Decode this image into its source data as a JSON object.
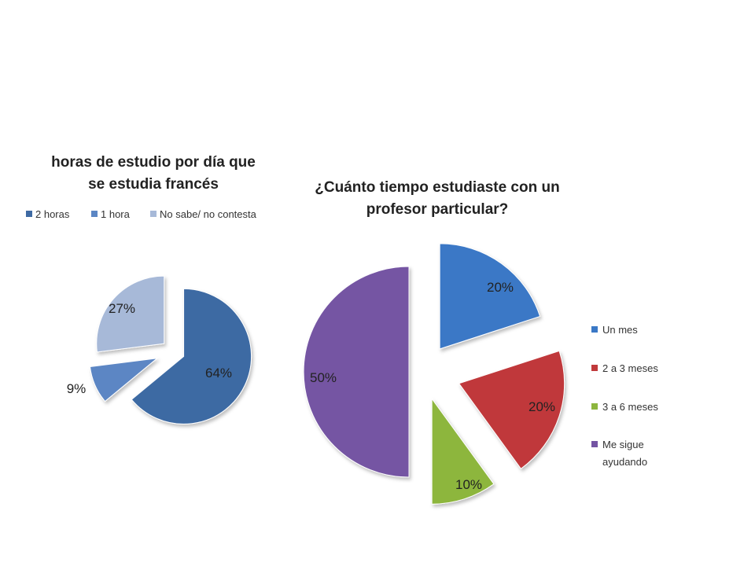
{
  "chart_data": [
    {
      "type": "pie",
      "title_lines": [
        "horas de estudio por día que",
        "se estudia francés"
      ],
      "legend_position": "top",
      "categories": [
        "2 horas",
        "1 hora",
        "No sabe/ no contesta"
      ],
      "values": [
        64,
        9,
        27
      ],
      "labels": [
        "64%",
        "9%",
        "27%"
      ],
      "colors": [
        "#3e6aa3",
        "#5b86c4",
        "#a7b9d8"
      ],
      "exploded": true
    },
    {
      "type": "pie",
      "title_lines": [
        "¿Cuánto tiempo estudiaste con un",
        "profesor particular?"
      ],
      "legend_position": "right",
      "categories": [
        "Un mes",
        "2 a 3 meses",
        "3 a 6 meses",
        "Me sigue ayudando"
      ],
      "legend_lines": [
        [
          "Un mes"
        ],
        [
          "2 a 3 meses"
        ],
        [
          "3 a 6 meses"
        ],
        [
          "Me sigue",
          "ayudando"
        ]
      ],
      "values": [
        20,
        20,
        10,
        50
      ],
      "labels": [
        "20%",
        "20%",
        "10%",
        "50%"
      ],
      "colors": [
        "#3a78c6",
        "#c0393b",
        "#8db63e",
        "#7454a3"
      ],
      "exploded": true
    }
  ]
}
